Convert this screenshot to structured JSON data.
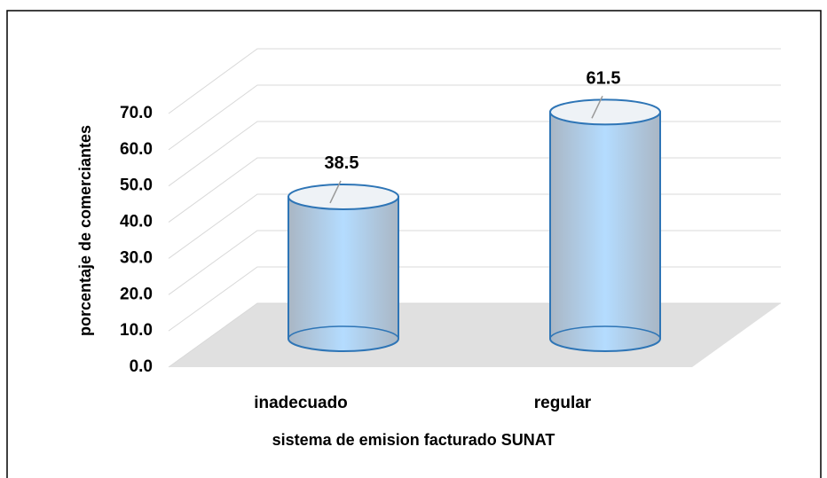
{
  "chart_data": {
    "type": "cylinder",
    "categories": [
      "inadecuado",
      "regular"
    ],
    "values": [
      38.5,
      61.5
    ],
    "color": "#9dc3e6",
    "edge_color": "#2e75b6",
    "ylim": [
      0,
      70
    ],
    "yticks": [
      {
        "value": 0,
        "label": "0.0"
      },
      {
        "value": 10,
        "label": "10.0"
      },
      {
        "value": 20,
        "label": "20.0"
      },
      {
        "value": 30,
        "label": "30.0"
      },
      {
        "value": 40,
        "label": "40.0"
      },
      {
        "value": 50,
        "label": "50.0"
      },
      {
        "value": 60,
        "label": "60.0"
      },
      {
        "value": 70,
        "label": "70.0"
      }
    ],
    "xlabel": "sistema de emision facturado SUNAT",
    "ylabel": "porcentaje de comerciantes",
    "grid": true
  }
}
